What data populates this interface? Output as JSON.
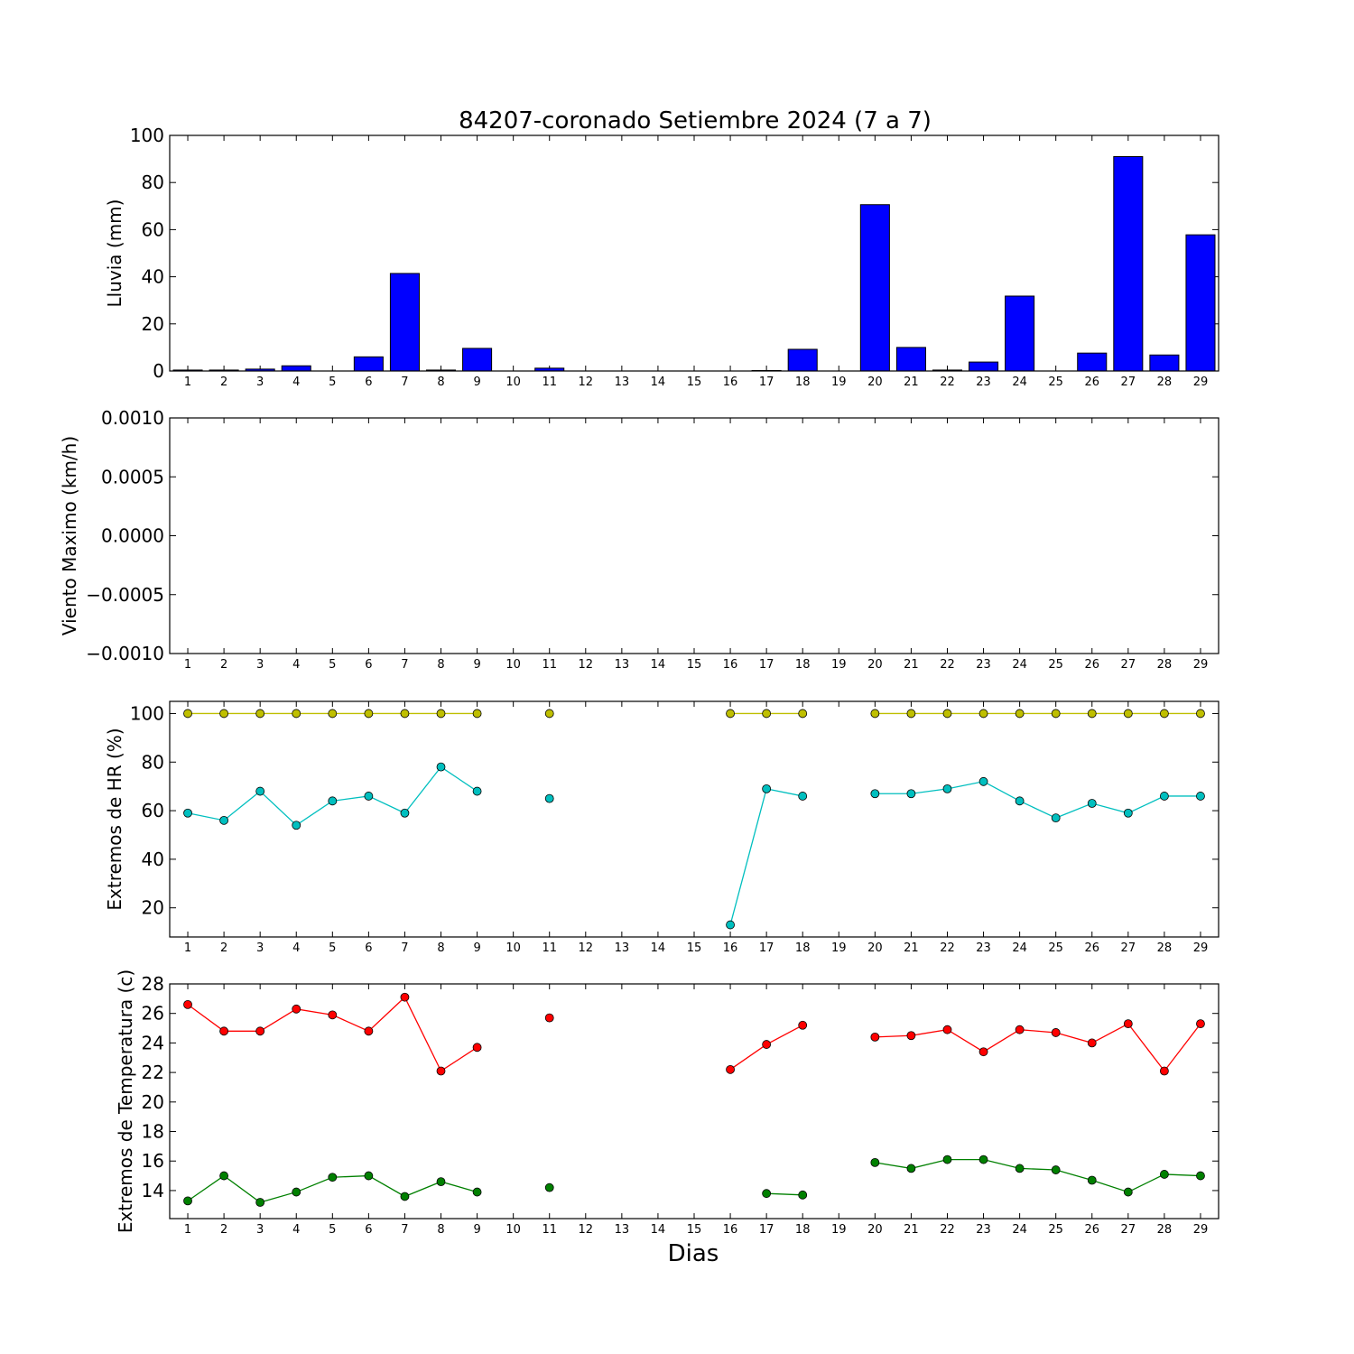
{
  "chart_data": {
    "title": "84207-coronado Setiembre 2024  (7 a 7)",
    "xlabel": "Dias",
    "days": [
      1,
      2,
      3,
      4,
      5,
      6,
      7,
      8,
      9,
      10,
      11,
      12,
      13,
      14,
      15,
      16,
      17,
      18,
      19,
      20,
      21,
      22,
      23,
      24,
      25,
      26,
      27,
      28,
      29
    ],
    "panels": [
      {
        "type": "bar",
        "ylabel": "Lluvia (mm)",
        "ylim": [
          0,
          100
        ],
        "yticks": [
          0,
          20,
          40,
          60,
          80,
          100
        ],
        "ytick_labels": [
          "0",
          "20",
          "40",
          "60",
          "80",
          "100"
        ],
        "series": [
          {
            "color": "#0000ff",
            "values": [
              0.4,
              0.4,
              0.8,
              2.2,
              0,
              6.0,
              41.4,
              0.4,
              9.6,
              0,
              1.2,
              0,
              0,
              0,
              0,
              0,
              0.2,
              9.2,
              0,
              70.6,
              10.0,
              0.4,
              3.8,
              31.8,
              0,
              7.6,
              91.0,
              6.8,
              57.8
            ]
          }
        ]
      },
      {
        "type": "line",
        "ylabel": "Viento Maximo (km/h)",
        "ylim": [
          -0.001,
          0.001
        ],
        "yticks": [
          -0.001,
          -0.0005,
          0,
          0.0005,
          0.001
        ],
        "ytick_labels": [
          "−0.0010",
          "−0.0005",
          "0.0000",
          "0.0005",
          "0.0010"
        ],
        "series": []
      },
      {
        "type": "line",
        "ylabel": "Extremos de HR (%)",
        "ylim": [
          8,
          105
        ],
        "yticks": [
          20,
          40,
          60,
          80,
          100
        ],
        "ytick_labels": [
          "20",
          "40",
          "60",
          "80",
          "100"
        ],
        "series": [
          {
            "color": "#bfbf00",
            "values": [
              100,
              100,
              100,
              100,
              100,
              100,
              100,
              100,
              100,
              null,
              100,
              null,
              null,
              null,
              null,
              100,
              100,
              100,
              null,
              100,
              100,
              100,
              100,
              100,
              100,
              100,
              100,
              100,
              100
            ]
          },
          {
            "color": "#00bfbf",
            "values": [
              59,
              56,
              68,
              54,
              64,
              66,
              59,
              78,
              68,
              null,
              65,
              null,
              null,
              null,
              null,
              13,
              69,
              66,
              null,
              67,
              67,
              69,
              72,
              64,
              57,
              63,
              59,
              66,
              66
            ]
          }
        ]
      },
      {
        "type": "line",
        "ylabel": "Extremos de Temperatura (c)",
        "ylim": [
          12.1,
          28
        ],
        "yticks": [
          14,
          16,
          18,
          20,
          22,
          24,
          26,
          28
        ],
        "ytick_labels": [
          "14",
          "16",
          "18",
          "20",
          "22",
          "24",
          "26",
          "28"
        ],
        "series": [
          {
            "color": "#ff0000",
            "values": [
              26.6,
              24.8,
              24.8,
              26.3,
              25.9,
              24.8,
              27.1,
              22.1,
              23.7,
              null,
              25.7,
              null,
              null,
              null,
              null,
              22.2,
              23.9,
              25.2,
              null,
              24.4,
              24.5,
              24.9,
              23.4,
              24.9,
              24.7,
              24.0,
              25.3,
              22.1,
              25.3
            ]
          },
          {
            "color": "#008000",
            "values": [
              13.3,
              15.0,
              13.2,
              13.9,
              14.9,
              15.0,
              13.6,
              14.6,
              13.9,
              null,
              14.2,
              null,
              null,
              null,
              null,
              null,
              13.8,
              13.7,
              null,
              15.9,
              15.5,
              16.1,
              16.1,
              15.5,
              15.4,
              14.7,
              13.9,
              15.1,
              15.0
            ]
          }
        ]
      }
    ]
  }
}
